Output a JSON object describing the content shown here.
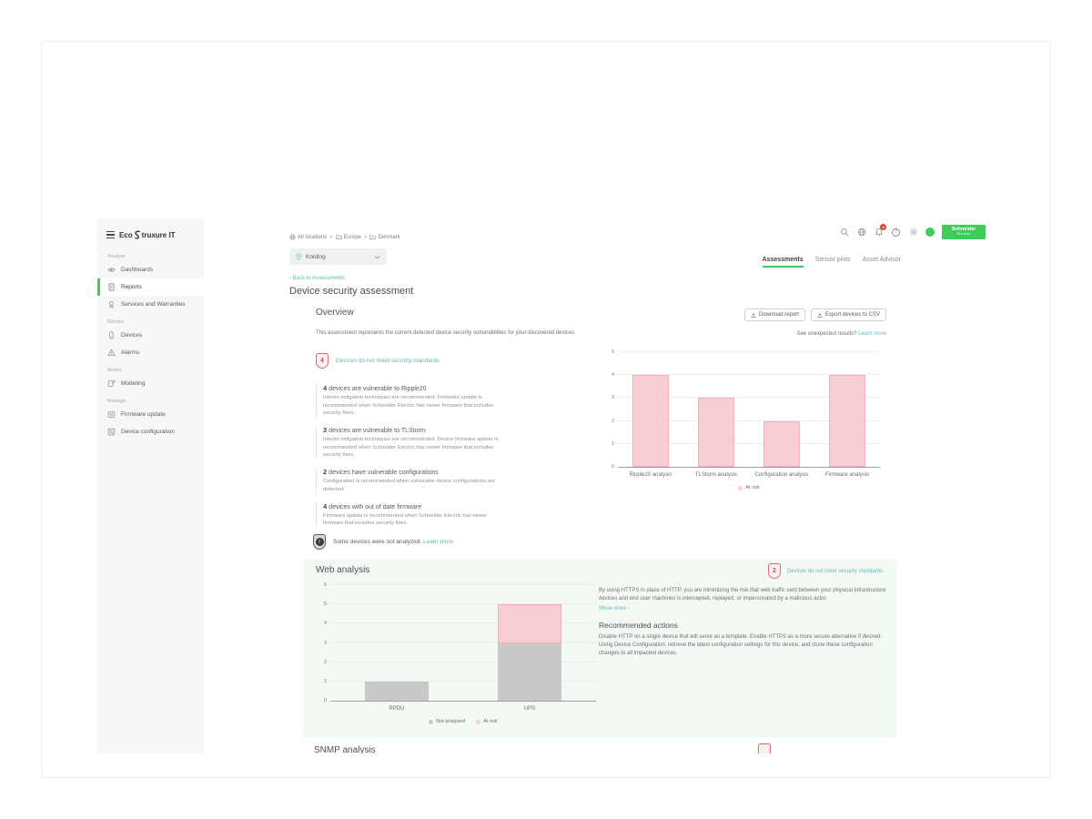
{
  "brand": {
    "name": "EcoStruxure IT",
    "prefix": "Eco",
    "suffix": "truxure IT"
  },
  "sidebar": {
    "sections": [
      {
        "label": "Analyze",
        "items": [
          {
            "label": "Dashboards"
          },
          {
            "label": "Reports"
          },
          {
            "label": "Services and Warranties"
          }
        ]
      },
      {
        "label": "Monitor",
        "items": [
          {
            "label": "Devices"
          },
          {
            "label": "Alarms"
          }
        ]
      },
      {
        "label": "Model",
        "items": [
          {
            "label": "Modeling"
          }
        ]
      },
      {
        "label": "Manage",
        "items": [
          {
            "label": "Firmware update"
          },
          {
            "label": "Device configuration"
          }
        ]
      }
    ]
  },
  "topbar": {
    "breadcrumb": [
      {
        "label": "All locations"
      },
      {
        "label": "Europe"
      },
      {
        "label": "Denmark"
      }
    ],
    "breadcrumb_separator": ">",
    "location_selector": {
      "value": "Kolding"
    },
    "notification_count": "4",
    "help_glyph": "?",
    "logo": {
      "line1": "Schneider",
      "line2": "Electric"
    }
  },
  "tabs": [
    {
      "label": "Assessments",
      "active": true
    },
    {
      "label": "Sensor plots",
      "active": false
    },
    {
      "label": "Asset Advisor",
      "active": false
    }
  ],
  "page": {
    "back_chevron": "‹",
    "back_link": "Back to Assessments",
    "title": "Device security assessment"
  },
  "overview": {
    "heading": "Overview",
    "download_button": "Download report",
    "export_button": "Export devices to CSV",
    "description": "This assessment represents the current detected device security vulnerabilities for your discovered devices.",
    "unexpected_results": "See unexpected results?",
    "learn_more": "Learn more",
    "risk_badge": {
      "count": "4",
      "label": "Devices do not meet security standards"
    },
    "findings": [
      {
        "count": "4",
        "title": "devices are vulnerable to Ripple20",
        "description": "Interim mitigation techniques are recommended. Firmware update is recommended when Schneider Electric has newer firmware that includes security fixes."
      },
      {
        "count": "3",
        "title": "devices are vulnerable to TLStorm",
        "description": "Interim mitigation techniques are recommended. Device firmware update is recommended when Schneider Electric has newer firmware that includes security fixes."
      },
      {
        "count": "2",
        "title": "devices have vulnerable configurations",
        "description": "Configuration is recommended when vulnerable device configurations are detected."
      },
      {
        "count": "4",
        "title": "devices with out of date firmware",
        "description": "Firmware update is recommended when Schneider Electric has newer firmware that includes security fixes."
      }
    ],
    "not_analyzed_glyph": "!",
    "not_analyzed_note": "Some devices were not analyzed.",
    "not_analyzed_link": "Learn more"
  },
  "web_analysis": {
    "heading": "Web analysis",
    "risk_badge": {
      "count": "2",
      "label": "Devices do not meet security standards"
    },
    "description": "By using HTTPS in place of HTTP, you are minimizing the risk that web traffic sent between your physical infrastructure devices and end user machines is intercepted, replayed, or impersonated by a malicious actor.",
    "show_more": "Show more",
    "show_more_chevron": "›",
    "recommended_heading": "Recommended actions",
    "recommended_text": "Disable HTTP on a single device that will serve as a template. Enable HTTPS as a more secure alternative if desired. Using Device Configuration, retrieve the latest configuration settings for this device, and clone these configuration changes to all impacted devices."
  },
  "snmp": {
    "heading": "SNMP analysis"
  },
  "colors": {
    "accent_green": "#3dcd58",
    "link_teal": "#64b8af",
    "at_risk_fill": "#f8cdd3",
    "at_risk_border": "#f2adb8",
    "not_analyzed_fill": "#c9c9c9",
    "badge_red": "#c94f5e"
  },
  "chart_data": [
    {
      "type": "bar",
      "stacked": false,
      "categories": [
        "Ripple20 analysis",
        "TLStorm analysis",
        "Configuration analysis",
        "Firmware analysis"
      ],
      "series": [
        {
          "name": "At risk",
          "values": [
            4,
            3,
            2,
            4
          ],
          "color": "#f8cdd3",
          "border": "#f2adb8"
        }
      ],
      "ylim": [
        0,
        5
      ],
      "yticks": [
        0,
        1,
        2,
        3,
        4,
        5
      ],
      "grid": true,
      "legend_position": "bottom"
    },
    {
      "type": "bar",
      "stacked": true,
      "categories": [
        "RPDU",
        "UPS"
      ],
      "series": [
        {
          "name": "Not analyzed",
          "values": [
            1,
            3
          ],
          "color": "#c9c9c9"
        },
        {
          "name": "At risk",
          "values": [
            0,
            2
          ],
          "color": "#f8cdd3",
          "border": "#f2adb8"
        }
      ],
      "ylim": [
        0,
        6
      ],
      "yticks": [
        0,
        1,
        2,
        3,
        4,
        5,
        6
      ],
      "grid": true,
      "legend_position": "bottom"
    }
  ]
}
